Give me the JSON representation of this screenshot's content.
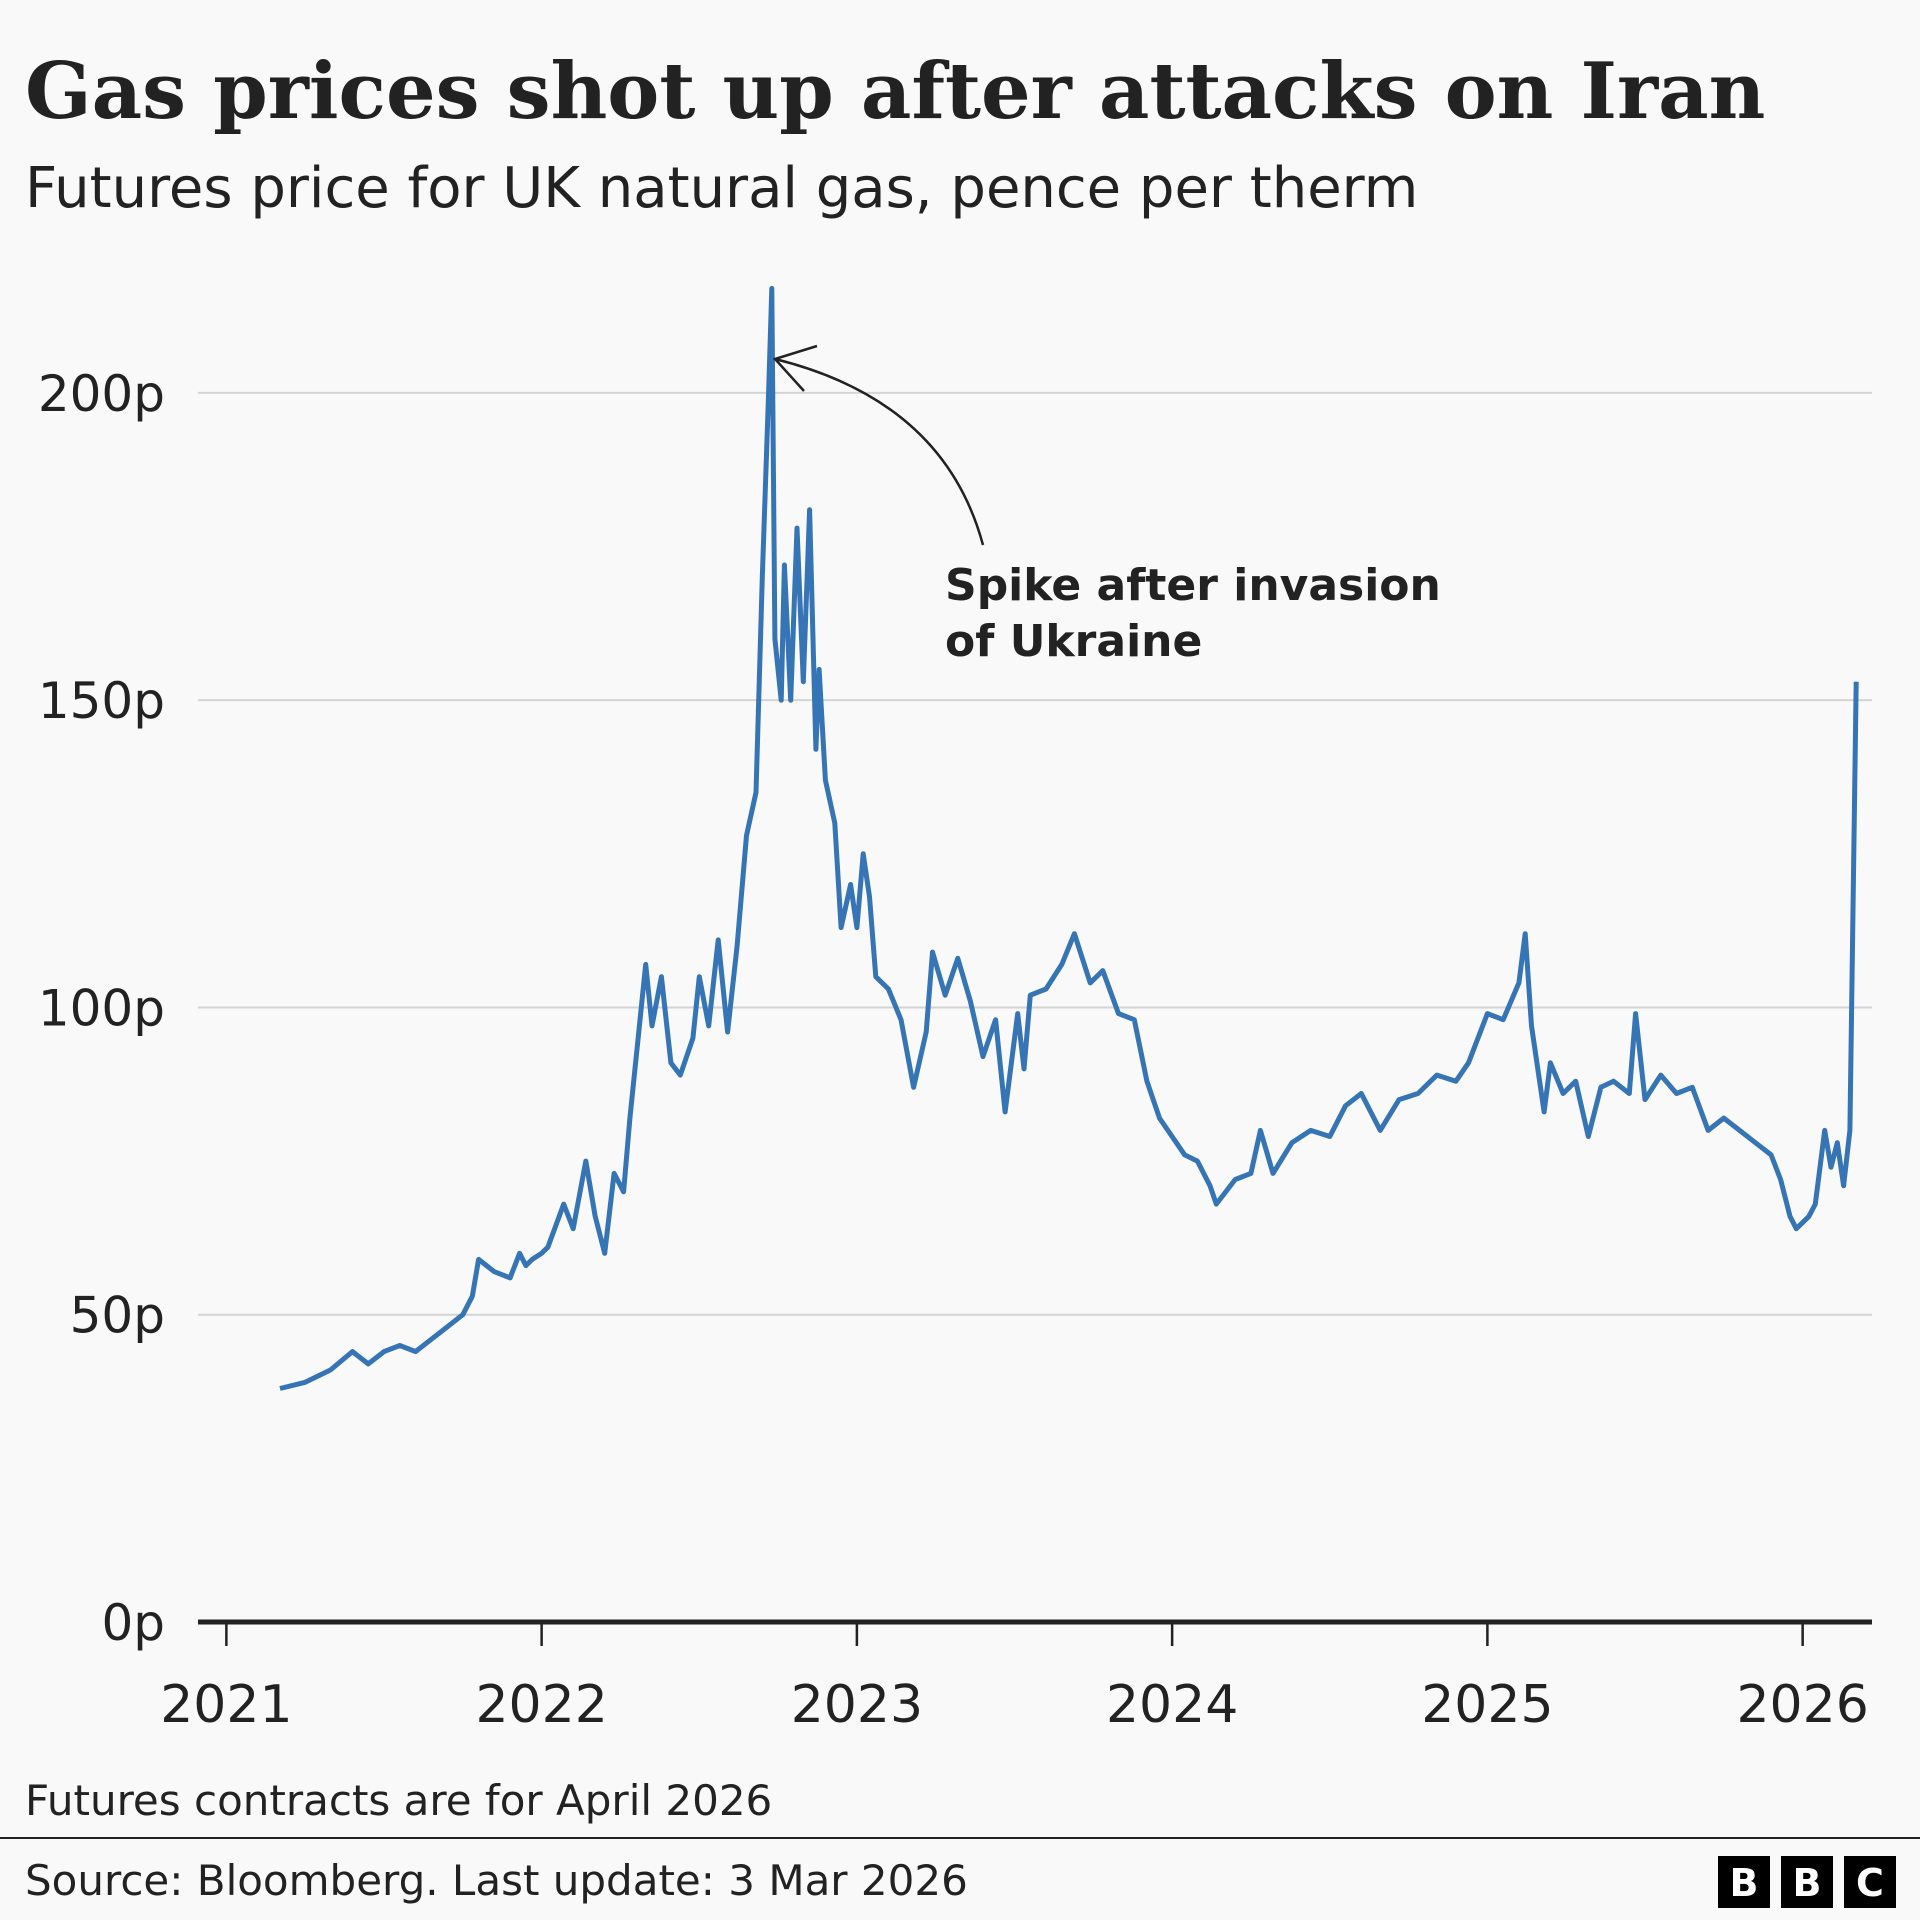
{
  "chart_data": {
    "type": "line",
    "title": "Gas prices shot up after attacks on Iran",
    "subtitle": "Futures price for UK natural gas, pence per therm",
    "annotation": [
      "Spike after invasion",
      "of Ukraine"
    ],
    "note": "Futures contracts are for April 2026",
    "source": "Source: Bloomberg. Last update: 3 Mar 2026",
    "logo": [
      "B",
      "B",
      "C"
    ],
    "xlim": [
      2020.91,
      2026.22
    ],
    "xticks": [
      2021,
      2022,
      2023,
      2024,
      2025,
      2026
    ],
    "ylim": [
      0,
      220
    ],
    "yticks": [
      {
        "value": 0,
        "label": "0p"
      },
      {
        "value": 50,
        "label": "50p"
      },
      {
        "value": 100,
        "label": "100p"
      },
      {
        "value": 150,
        "label": "150p"
      },
      {
        "value": 200,
        "label": "200p"
      }
    ],
    "grid": true,
    "x": [
      2021.17,
      2021.25,
      2021.33,
      2021.4,
      2021.45,
      2021.5,
      2021.55,
      2021.6,
      2021.65,
      2021.7,
      2021.75,
      2021.78,
      2021.8,
      2021.85,
      2021.9,
      2021.93,
      2021.95,
      2021.97,
      2022.0,
      2022.02,
      2022.07,
      2022.1,
      2022.14,
      2022.17,
      2022.2,
      2022.23,
      2022.26,
      2022.28,
      2022.31,
      2022.33,
      2022.35,
      2022.38,
      2022.41,
      2022.44,
      2022.48,
      2022.5,
      2022.53,
      2022.56,
      2022.59,
      2022.62,
      2022.65,
      2022.68,
      2022.7,
      2022.72,
      2022.73,
      2022.74,
      2022.76,
      2022.77,
      2022.79,
      2022.81,
      2022.83,
      2022.85,
      2022.87,
      2022.88,
      2022.9,
      2022.93,
      2022.95,
      2022.98,
      2023.0,
      2023.02,
      2023.04,
      2023.06,
      2023.1,
      2023.14,
      2023.18,
      2023.22,
      2023.24,
      2023.28,
      2023.32,
      2023.36,
      2023.4,
      2023.44,
      2023.47,
      2023.51,
      2023.53,
      2023.55,
      2023.6,
      2023.65,
      2023.69,
      2023.74,
      2023.78,
      2023.83,
      2023.88,
      2023.92,
      2023.96,
      2024.0,
      2024.04,
      2024.08,
      2024.12,
      2024.14,
      2024.2,
      2024.25,
      2024.28,
      2024.32,
      2024.38,
      2024.44,
      2024.5,
      2024.55,
      2024.6,
      2024.66,
      2024.72,
      2024.78,
      2024.84,
      2024.9,
      2024.94,
      2025.0,
      2025.05,
      2025.1,
      2025.12,
      2025.14,
      2025.18,
      2025.2,
      2025.24,
      2025.28,
      2025.32,
      2025.36,
      2025.4,
      2025.45,
      2025.47,
      2025.5,
      2025.55,
      2025.6,
      2025.65,
      2025.7,
      2025.75,
      2025.8,
      2025.85,
      2025.9,
      2025.93,
      2025.96,
      2025.98,
      2026.02,
      2026.04,
      2026.07,
      2026.09,
      2026.11,
      2026.13,
      2026.15,
      2026.17
    ],
    "series": [
      {
        "color": "#3574b5",
        "values": [
          38,
          39,
          41,
          44,
          42,
          44,
          45,
          44,
          46,
          48,
          50,
          53,
          59,
          57,
          56,
          60,
          58,
          59,
          60,
          61,
          68,
          64,
          75,
          66,
          60,
          73,
          70,
          82,
          97,
          107,
          97,
          105,
          91,
          89,
          95,
          105,
          97,
          111,
          96,
          110,
          128,
          135,
          170,
          200,
          217,
          160,
          150,
          172,
          150,
          178,
          153,
          181,
          142,
          155,
          137,
          130,
          113,
          120,
          113,
          125,
          118,
          105,
          103,
          98,
          87,
          96,
          109,
          102,
          108,
          101,
          92,
          98,
          83,
          99,
          90,
          102,
          103,
          107,
          112,
          104,
          106,
          99,
          98,
          88,
          82,
          79,
          76,
          75,
          71,
          68,
          72,
          73,
          80,
          73,
          78,
          80,
          79,
          84,
          86,
          80,
          85,
          86,
          89,
          88,
          91,
          99,
          98,
          104,
          112,
          97,
          83,
          91,
          86,
          88,
          79,
          87,
          88,
          86,
          99,
          85,
          89,
          86,
          87,
          80,
          82,
          80,
          78,
          76,
          72,
          66,
          64,
          66,
          68,
          80,
          74,
          78,
          71,
          80,
          153
        ]
      }
    ]
  }
}
